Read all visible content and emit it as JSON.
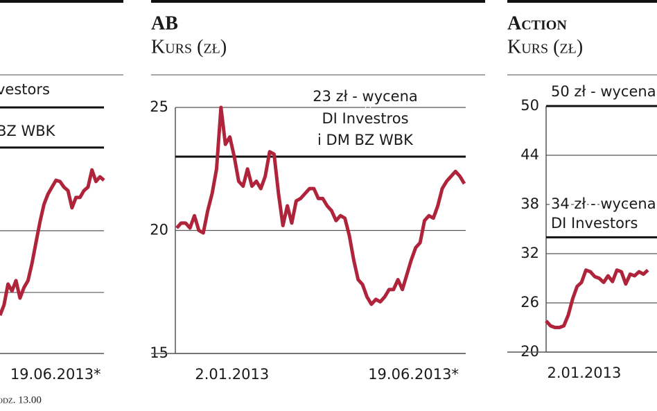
{
  "chart_data": [
    {
      "type": "line",
      "series": [
        {
          "color": "#b0243b",
          "values": [
            15.5,
            19.7,
            28.2,
            25.4,
            29.6,
            22.5,
            26.8,
            29.6,
            36.6,
            45.1,
            53.5,
            60.6,
            64.8,
            67.6,
            70.4,
            69.9,
            67.6,
            66.2,
            59.2,
            63.4,
            63.4,
            66.2,
            67.6,
            74.6,
            69.9,
            71.8,
            70.4
          ]
        }
      ],
      "xlim": [
        0,
        26
      ],
      "xticks": [
        {
          "value": 13.9,
          "label": "19.06.2013*"
        }
      ],
      "ylim": [
        0,
        100
      ],
      "ygrid": [
        49.9,
        24.8
      ],
      "reference_lines": [
        {
          "value": 100,
          "lines": [
            "vestors"
          ]
        },
        {
          "value": 83.7,
          "lines": [
            "BZ WBK"
          ]
        }
      ],
      "note": "odz. 13.00"
    },
    {
      "type": "line",
      "title": "AB",
      "subtitle": "Kurs (zł)",
      "series": [
        {
          "color": "#b0243b",
          "values": [
            20.1,
            20.3,
            20.3,
            20.1,
            20.6,
            20.0,
            19.9,
            20.8,
            21.5,
            22.5,
            25.0,
            23.5,
            23.8,
            23.0,
            22.0,
            21.8,
            22.5,
            21.8,
            22.0,
            21.7,
            22.2,
            23.2,
            23.1,
            21.5,
            20.2,
            21.0,
            20.3,
            21.2,
            21.3,
            21.5,
            21.7,
            21.7,
            21.3,
            21.3,
            21.0,
            20.8,
            20.4,
            20.6,
            20.5,
            19.8,
            18.8,
            18.0,
            17.8,
            17.3,
            17.0,
            17.2,
            17.1,
            17.3,
            17.6,
            17.6,
            18.0,
            17.6,
            18.2,
            18.8,
            19.3,
            19.5,
            20.4,
            20.6,
            20.5,
            21.0,
            21.7,
            22.0,
            22.2,
            22.4,
            22.2,
            21.9
          ]
        }
      ],
      "xlim": [
        0,
        65
      ],
      "xticks": [
        {
          "value": 12.5,
          "label": "2.01.2013"
        },
        {
          "value": 53.5,
          "label": "19.06.2013*"
        }
      ],
      "ylim": [
        15,
        25
      ],
      "yticks": [
        15,
        20,
        25
      ],
      "grid": true,
      "reference_lines": [
        {
          "value": 23,
          "lines": [
            "23 zł - wycena",
            "DI Investros",
            "i DM BZ WBK"
          ]
        }
      ]
    },
    {
      "type": "line",
      "title": "Action",
      "subtitle": "Kurs (zł)",
      "series": [
        {
          "color": "#b0243b",
          "values": [
            23.8,
            23.2,
            23.0,
            23.0,
            23.2,
            24.5,
            26.5,
            28.0,
            28.5,
            30.0,
            29.8,
            29.2,
            29.0,
            28.5,
            29.3,
            28.6,
            30.0,
            29.8,
            28.3,
            29.5,
            29.3,
            29.8,
            29.5,
            30.0
          ]
        }
      ],
      "xlim": [
        0,
        65
      ],
      "xticks": [
        {
          "value": 8.6,
          "label": "2.01.2013"
        }
      ],
      "ylim": [
        20,
        50
      ],
      "yticks": [
        20,
        26,
        32,
        38,
        44,
        50
      ],
      "grid": true,
      "reference_lines": [
        {
          "value": 50,
          "lines": [
            "50 zł - wycena"
          ]
        },
        {
          "value": 34,
          "lines": [
            "34 zł - wycena",
            "DI Investors"
          ]
        }
      ]
    }
  ]
}
